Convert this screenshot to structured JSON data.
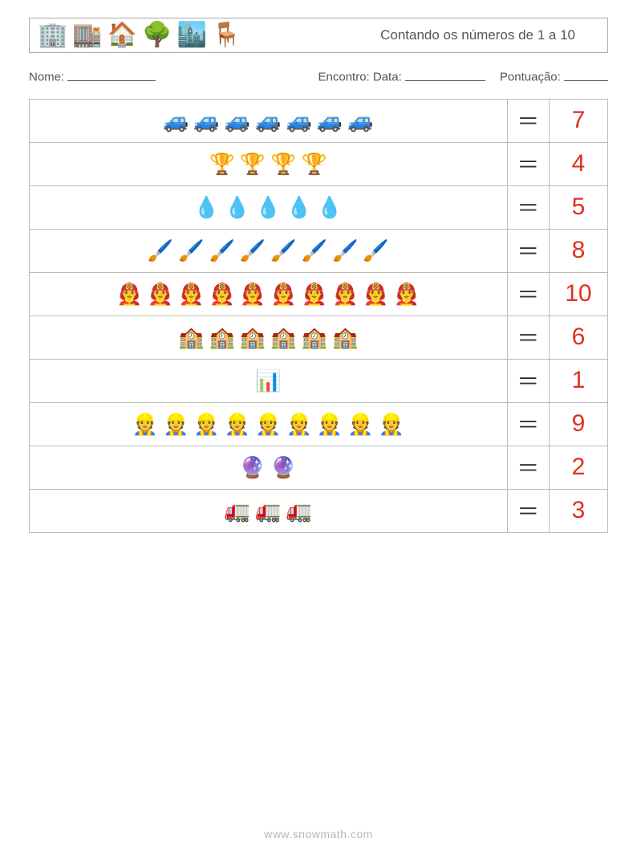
{
  "colors": {
    "answer": "#e03020",
    "border": "#bbbbbb",
    "text": "#444444"
  },
  "header": {
    "title": "Contando os números de 1 a 10",
    "icons": [
      "🏢",
      "🏬",
      "🏠",
      "🌳",
      "🏙️",
      "🪑"
    ]
  },
  "info": {
    "name_label": "Nome:",
    "name_blank_width": 110,
    "date_label": "Encontro: Data:",
    "date_blank_width": 100,
    "score_label": "Pontuação:",
    "score_blank_width": 55
  },
  "equals_sign": "＝",
  "rows": [
    {
      "icon": "🚙",
      "count": 7,
      "answer": "7"
    },
    {
      "icon": "🏆",
      "count": 4,
      "answer": "4"
    },
    {
      "icon": "💧",
      "count": 5,
      "answer": "5"
    },
    {
      "icon": "🖌️",
      "count": 8,
      "answer": "8"
    },
    {
      "icon": "👨‍🚒",
      "count": 10,
      "answer": "10"
    },
    {
      "icon": "🏫",
      "count": 6,
      "answer": "6"
    },
    {
      "icon": "📊",
      "count": 1,
      "answer": "1"
    },
    {
      "icon": "👷",
      "count": 9,
      "answer": "9"
    },
    {
      "icon": "🔮",
      "count": 2,
      "answer": "2"
    },
    {
      "icon": "🚛",
      "count": 3,
      "answer": "3"
    }
  ],
  "footer": "www.snowmath.com"
}
